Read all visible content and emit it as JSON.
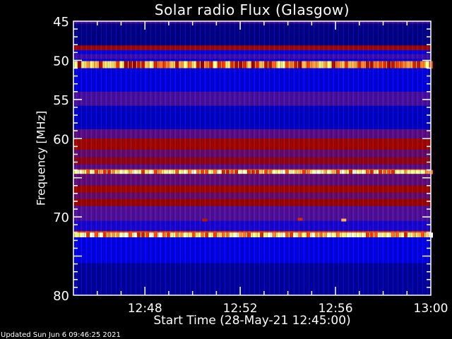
{
  "chart_data": {
    "type": "heatmap",
    "title": "Solar radio Flux (Glasgow)",
    "xlabel": "Start Time (28-May-21 12:45:00)",
    "ylabel": "Frequency [MHz]",
    "xlim_minutes": [
      "12:45",
      "13:00"
    ],
    "ylim": [
      45,
      80
    ],
    "y_inverted": true,
    "xticks": [
      "12:48",
      "12:52",
      "12:56",
      "13:00"
    ],
    "yticks": [
      45,
      50,
      55,
      60,
      65,
      70,
      75,
      80
    ],
    "ytick_labels": [
      "45",
      "50",
      "55",
      "60",
      "",
      "70",
      "",
      "80"
    ],
    "colormap": [
      "#000028",
      "#0000a0",
      "#0000f0",
      "#5010a0",
      "#a00000",
      "#ff4000",
      "#ffff80",
      "#ffffff"
    ],
    "bands": [
      {
        "f": [
          45.0,
          45.3
        ],
        "level": 0.42
      },
      {
        "f": [
          45.3,
          48.1
        ],
        "level": 0.12
      },
      {
        "f": [
          48.1,
          48.7
        ],
        "level": 0.58
      },
      {
        "f": [
          48.7,
          49.2
        ],
        "level": 0.28
      },
      {
        "f": [
          49.2,
          49.8
        ],
        "level": 0.4
      },
      {
        "f": [
          49.8,
          50.1
        ],
        "level": 0.28
      },
      {
        "f": [
          50.1,
          51.0
        ],
        "level": 0.8
      },
      {
        "f": [
          51.0,
          54.0
        ],
        "level": 0.27
      },
      {
        "f": [
          54.0,
          55.8
        ],
        "level": 0.42
      },
      {
        "f": [
          55.8,
          58.8
        ],
        "level": 0.22
      },
      {
        "f": [
          58.8,
          60.0
        ],
        "level": 0.45
      },
      {
        "f": [
          60.0,
          61.4
        ],
        "level": 0.58
      },
      {
        "f": [
          61.4,
          62.4
        ],
        "level": 0.47
      },
      {
        "f": [
          62.4,
          63.3
        ],
        "level": 0.55
      },
      {
        "f": [
          63.3,
          63.9
        ],
        "level": 0.44
      },
      {
        "f": [
          63.9,
          64.0
        ],
        "level": 0.7
      },
      {
        "f": [
          64.0,
          64.5
        ],
        "level": 0.9
      },
      {
        "f": [
          64.5,
          66.0
        ],
        "level": 0.46
      },
      {
        "f": [
          66.0,
          66.9
        ],
        "level": 0.58
      },
      {
        "f": [
          66.9,
          67.7
        ],
        "level": 0.47
      },
      {
        "f": [
          67.7,
          68.6
        ],
        "level": 0.57
      },
      {
        "f": [
          68.6,
          70.5
        ],
        "level": 0.43
      },
      {
        "f": [
          70.5,
          71.8
        ],
        "level": 0.33
      },
      {
        "f": [
          71.8,
          72.0
        ],
        "level": 0.68
      },
      {
        "f": [
          72.0,
          72.6
        ],
        "level": 0.9
      },
      {
        "f": [
          72.6,
          75.9
        ],
        "level": 0.28
      },
      {
        "f": [
          75.9,
          80.0
        ],
        "level": 0.15
      }
    ],
    "hotspots": [
      {
        "time": "12:50:30",
        "f": 70.4,
        "level": 0.62
      },
      {
        "time": "12:54:30",
        "f": 70.3,
        "level": 0.66
      },
      {
        "time": "12:56:20",
        "f": 70.4,
        "level": 0.8
      }
    ]
  },
  "footer": {
    "updated": "Updated Sun Jun  6 09:46:25 2021"
  }
}
